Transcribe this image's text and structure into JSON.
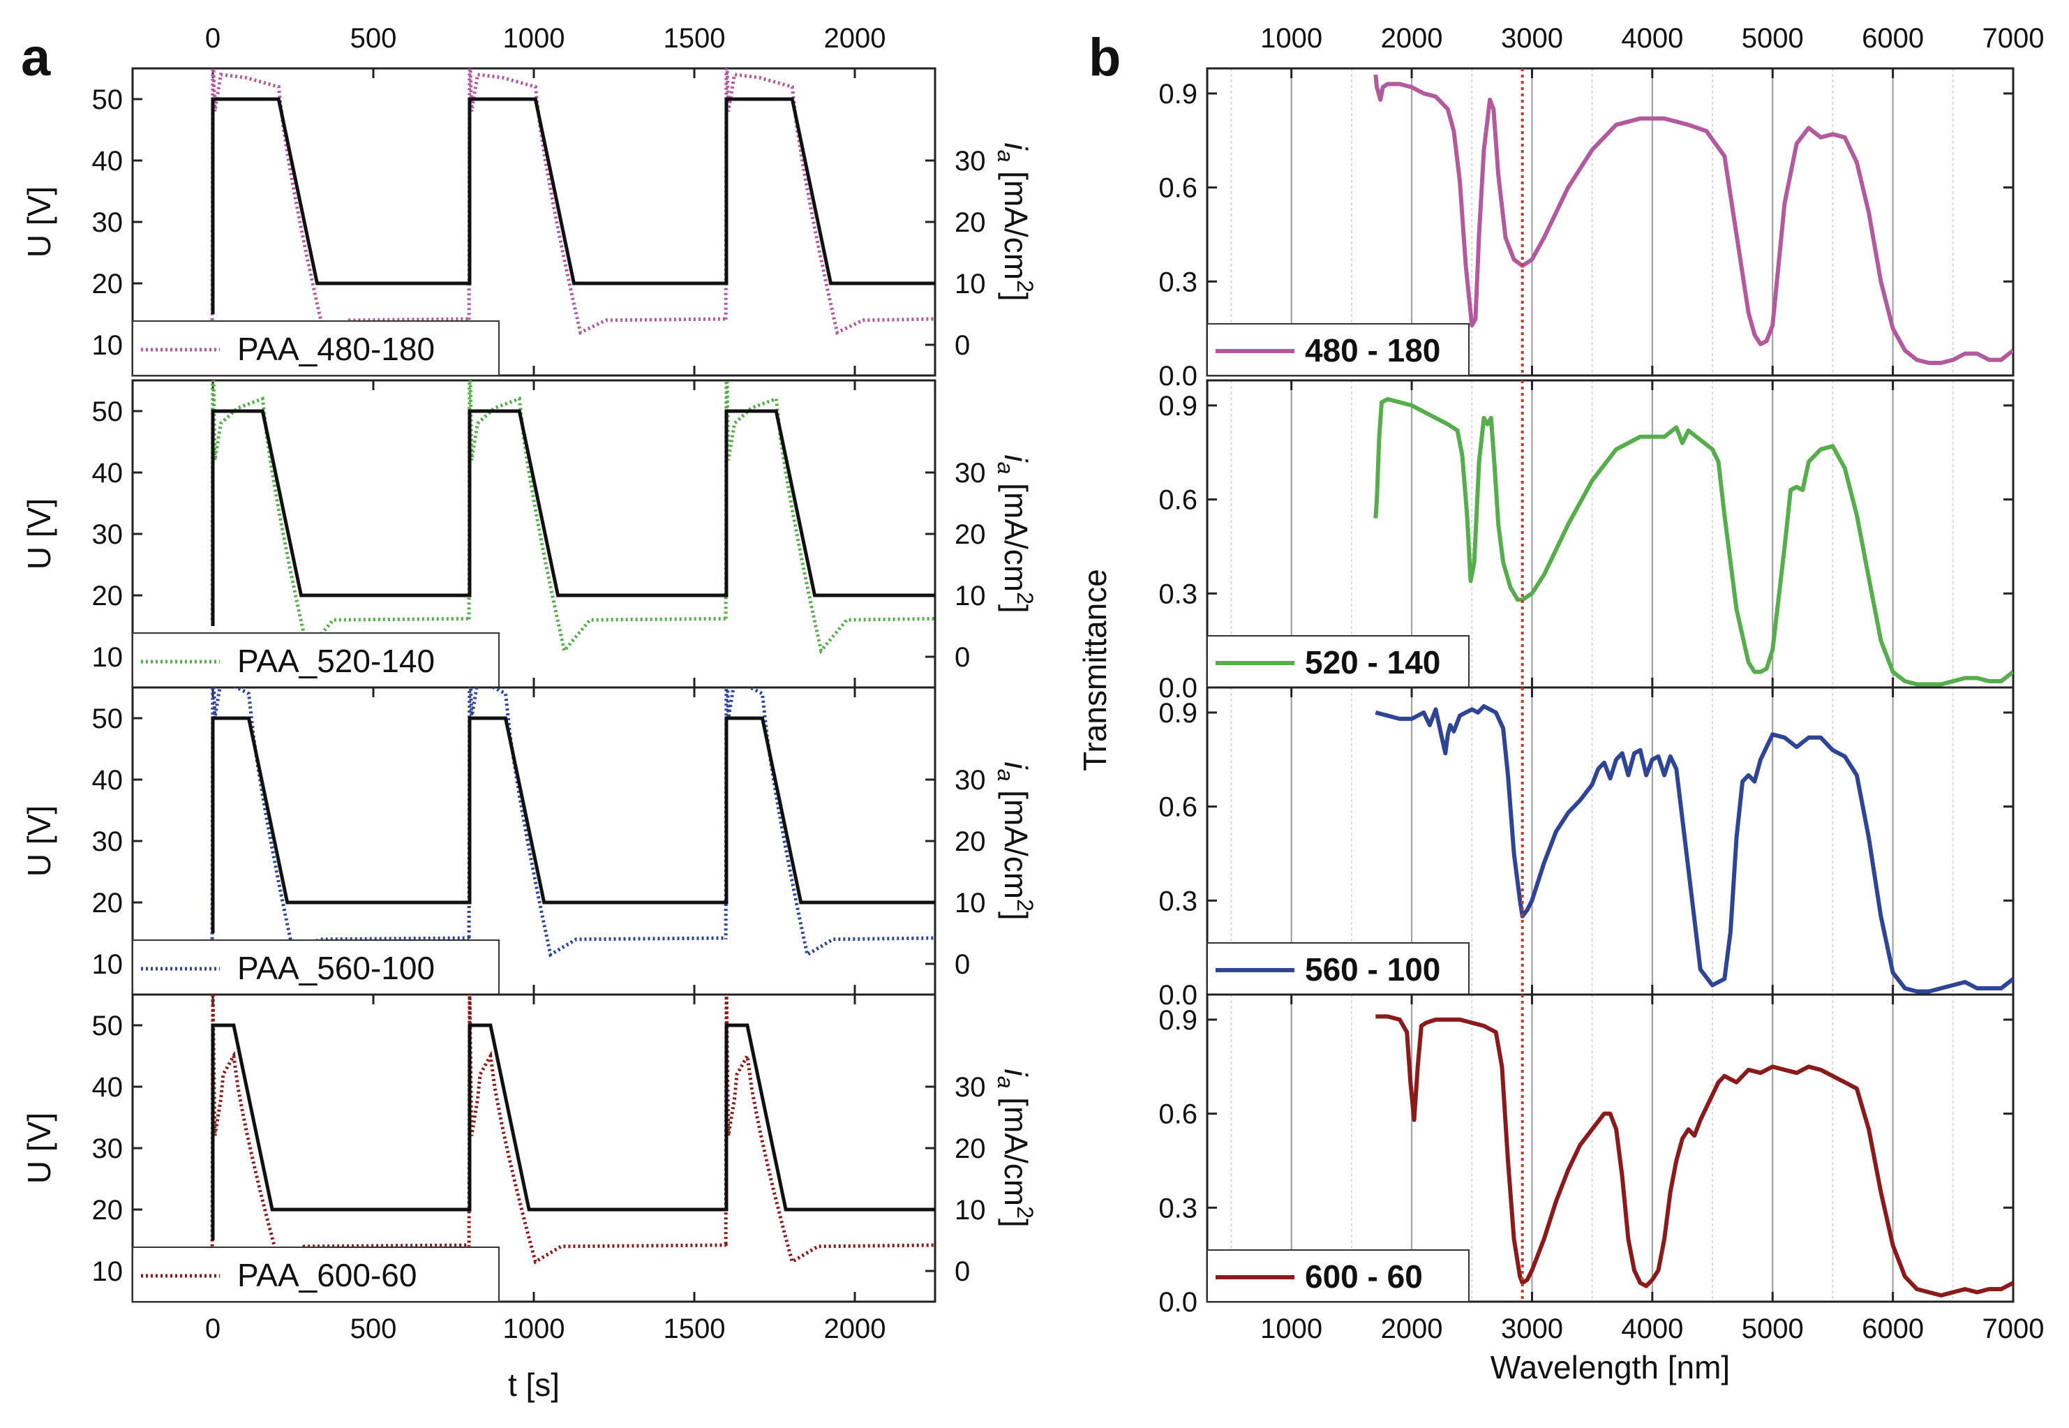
{
  "figure": {
    "panel_labels": {
      "a": "a",
      "b": "b"
    }
  },
  "chart_data": [
    {
      "panel": "a",
      "type": "line",
      "xlabel": "t [s]",
      "xlim": [
        -250,
        2250
      ],
      "xticks": [
        0,
        500,
        1000,
        1500,
        2000
      ],
      "top_xticks": [
        0,
        500,
        1000,
        1500,
        2000
      ],
      "left_ylabel": "U [V]",
      "left_ylim": [
        5,
        55
      ],
      "left_yticks": [
        10,
        20,
        30,
        40,
        50
      ],
      "right_ylabel": "i_a [mA/cm²]",
      "right_ylabel_parts": {
        "symbol": "i",
        "subscript": "a",
        "unit": " [mA/cm",
        "sup": "2",
        "close": "]"
      },
      "right_ylim": [
        -5,
        45
      ],
      "right_yticks": [
        0,
        10,
        20,
        30
      ],
      "voltage_series_name": "U",
      "current_series_name": "i_a",
      "subplots": [
        {
          "legend": "PAA_480-180",
          "color": "#B35A9E",
          "upper_voltage": 50,
          "lower_voltage": 20,
          "hold_time": 205,
          "ramp_time": 120,
          "period": 800,
          "start_time": 0,
          "current": {
            "peak": 45,
            "hold_start": 44,
            "hold_end": 42,
            "overshoot": 49,
            "min": 2,
            "steady": 4,
            "decay": 70,
            "tail": 100
          }
        },
        {
          "legend": "PAA_520-140",
          "color": "#55AE4B",
          "upper_voltage": 50,
          "lower_voltage": 20,
          "hold_time": 155,
          "ramp_time": 120,
          "period": 800,
          "start_time": 0,
          "current": {
            "peak": 49,
            "hold_start": 38,
            "hold_end": 42,
            "overshoot": 53,
            "min": 1,
            "steady": 6,
            "decay": 70,
            "tail": 100
          }
        },
        {
          "legend": "PAA_560-100",
          "color": "#2E4596",
          "upper_voltage": 50,
          "lower_voltage": 20,
          "hold_time": 112,
          "ramp_time": 120,
          "period": 800,
          "start_time": 0,
          "current": {
            "peak": 47,
            "hold_start": 46,
            "hold_end": 44,
            "overshoot": 52,
            "min": 1.5,
            "steady": 4,
            "decay": 70,
            "tail": 100
          }
        },
        {
          "legend": "PAA_600-60",
          "color": "#8B1A1A",
          "upper_voltage": 50,
          "lower_voltage": 20,
          "hold_time": 65,
          "ramp_time": 120,
          "period": 800,
          "start_time": 0,
          "current": {
            "peak": 35,
            "hold_start": 28,
            "hold_end": 35,
            "overshoot": 46,
            "min": 1.5,
            "steady": 4,
            "decay": 70,
            "tail": 100
          }
        }
      ]
    },
    {
      "panel": "b",
      "type": "line",
      "xlabel": "Wavelength [nm]",
      "ylabel": "Transmittance",
      "xlim": [
        300,
        7000
      ],
      "xticks": [
        1000,
        2000,
        3000,
        4000,
        5000,
        6000,
        7000
      ],
      "top_xticks": [
        1000,
        2000,
        3000,
        4000,
        5000,
        6000,
        7000
      ],
      "ylim": [
        0,
        0.98
      ],
      "yticks": [
        "0.0",
        "0.3",
        "0.6",
        "0.9"
      ],
      "reference_line_x": 2920,
      "reference_line_color": "#C0392B",
      "series": [
        {
          "name": "480 - 180",
          "color": "#B35A9E",
          "x": [
            1700,
            1710,
            1740,
            1760,
            1800,
            1900,
            2000,
            2100,
            2200,
            2300,
            2350,
            2400,
            2450,
            2500,
            2530,
            2560,
            2600,
            2650,
            2680,
            2720,
            2780,
            2850,
            2920,
            3000,
            3100,
            3300,
            3500,
            3700,
            3900,
            4100,
            4300,
            4450,
            4600,
            4700,
            4800,
            4850,
            4900,
            4950,
            5000,
            5100,
            5200,
            5300,
            5400,
            5500,
            5600,
            5700,
            5800,
            5900,
            6000,
            6100,
            6200,
            6300,
            6400,
            6500,
            6600,
            6700,
            6800,
            6900,
            7000
          ],
          "y": [
            0.96,
            0.92,
            0.88,
            0.92,
            0.93,
            0.93,
            0.92,
            0.9,
            0.89,
            0.85,
            0.78,
            0.62,
            0.35,
            0.16,
            0.18,
            0.45,
            0.72,
            0.88,
            0.85,
            0.64,
            0.44,
            0.37,
            0.35,
            0.37,
            0.44,
            0.6,
            0.72,
            0.8,
            0.82,
            0.82,
            0.8,
            0.78,
            0.7,
            0.45,
            0.2,
            0.13,
            0.1,
            0.11,
            0.16,
            0.55,
            0.74,
            0.79,
            0.76,
            0.77,
            0.76,
            0.68,
            0.52,
            0.3,
            0.15,
            0.08,
            0.05,
            0.04,
            0.04,
            0.05,
            0.07,
            0.07,
            0.05,
            0.05,
            0.08
          ]
        },
        {
          "name": "520 - 140",
          "color": "#55AE4B",
          "x": [
            1700,
            1710,
            1730,
            1750,
            1800,
            1900,
            2000,
            2100,
            2200,
            2300,
            2380,
            2420,
            2460,
            2490,
            2520,
            2560,
            2600,
            2630,
            2660,
            2690,
            2720,
            2760,
            2820,
            2880,
            2920,
            3000,
            3100,
            3300,
            3500,
            3700,
            3900,
            4100,
            4200,
            4250,
            4300,
            4400,
            4500,
            4550,
            4600,
            4700,
            4800,
            4850,
            4900,
            4950,
            5000,
            5100,
            5150,
            5200,
            5250,
            5300,
            5400,
            5500,
            5600,
            5700,
            5800,
            5900,
            6000,
            6100,
            6200,
            6300,
            6400,
            6500,
            6600,
            6700,
            6800,
            6900,
            7000
          ],
          "y": [
            0.54,
            0.6,
            0.8,
            0.91,
            0.92,
            0.91,
            0.9,
            0.88,
            0.86,
            0.84,
            0.82,
            0.74,
            0.55,
            0.34,
            0.4,
            0.72,
            0.86,
            0.84,
            0.86,
            0.7,
            0.52,
            0.4,
            0.32,
            0.28,
            0.28,
            0.3,
            0.36,
            0.52,
            0.66,
            0.76,
            0.8,
            0.8,
            0.83,
            0.78,
            0.82,
            0.79,
            0.76,
            0.72,
            0.55,
            0.25,
            0.08,
            0.05,
            0.05,
            0.06,
            0.12,
            0.45,
            0.63,
            0.64,
            0.63,
            0.72,
            0.76,
            0.77,
            0.7,
            0.55,
            0.35,
            0.15,
            0.05,
            0.02,
            0.01,
            0.01,
            0.01,
            0.02,
            0.03,
            0.03,
            0.02,
            0.02,
            0.05
          ]
        },
        {
          "name": "560 - 100",
          "color": "#2E4596",
          "x": [
            1700,
            1800,
            1900,
            2000,
            2100,
            2150,
            2200,
            2250,
            2280,
            2300,
            2320,
            2350,
            2400,
            2450,
            2500,
            2550,
            2600,
            2650,
            2700,
            2760,
            2800,
            2850,
            2900,
            2920,
            2960,
            3000,
            3100,
            3200,
            3300,
            3400,
            3500,
            3550,
            3600,
            3650,
            3700,
            3750,
            3800,
            3850,
            3900,
            3950,
            4000,
            4050,
            4100,
            4150,
            4200,
            4300,
            4400,
            4500,
            4600,
            4650,
            4700,
            4750,
            4800,
            4850,
            4900,
            5000,
            5100,
            5200,
            5300,
            5400,
            5500,
            5600,
            5700,
            5800,
            5900,
            6000,
            6100,
            6200,
            6300,
            6400,
            6500,
            6600,
            6700,
            6800,
            6900,
            7000
          ],
          "y": [
            0.9,
            0.89,
            0.88,
            0.88,
            0.9,
            0.86,
            0.91,
            0.82,
            0.77,
            0.83,
            0.86,
            0.84,
            0.89,
            0.9,
            0.91,
            0.9,
            0.92,
            0.91,
            0.9,
            0.85,
            0.7,
            0.45,
            0.3,
            0.25,
            0.27,
            0.3,
            0.42,
            0.52,
            0.58,
            0.62,
            0.67,
            0.72,
            0.74,
            0.69,
            0.75,
            0.77,
            0.7,
            0.77,
            0.78,
            0.7,
            0.75,
            0.76,
            0.7,
            0.76,
            0.72,
            0.4,
            0.08,
            0.03,
            0.05,
            0.2,
            0.5,
            0.68,
            0.7,
            0.68,
            0.75,
            0.83,
            0.82,
            0.79,
            0.82,
            0.82,
            0.78,
            0.76,
            0.7,
            0.5,
            0.25,
            0.07,
            0.02,
            0.01,
            0.01,
            0.02,
            0.03,
            0.04,
            0.02,
            0.02,
            0.02,
            0.05
          ]
        },
        {
          "name": "600 - 60",
          "color": "#8B1A1A",
          "x": [
            1700,
            1800,
            1900,
            1960,
            1990,
            2020,
            2050,
            2080,
            2120,
            2200,
            2300,
            2400,
            2500,
            2600,
            2700,
            2750,
            2800,
            2850,
            2900,
            2920,
            2960,
            3000,
            3100,
            3200,
            3300,
            3400,
            3500,
            3600,
            3650,
            3700,
            3750,
            3800,
            3850,
            3900,
            3950,
            4000,
            4050,
            4100,
            4150,
            4200,
            4250,
            4300,
            4350,
            4400,
            4450,
            4500,
            4550,
            4600,
            4700,
            4800,
            4900,
            5000,
            5100,
            5200,
            5300,
            5400,
            5500,
            5600,
            5700,
            5800,
            5900,
            6000,
            6100,
            6200,
            6300,
            6400,
            6500,
            6600,
            6700,
            6800,
            6900,
            7000
          ],
          "y": [
            0.91,
            0.91,
            0.9,
            0.86,
            0.7,
            0.58,
            0.75,
            0.88,
            0.89,
            0.9,
            0.9,
            0.9,
            0.89,
            0.88,
            0.86,
            0.75,
            0.45,
            0.2,
            0.08,
            0.06,
            0.07,
            0.1,
            0.2,
            0.32,
            0.42,
            0.5,
            0.55,
            0.6,
            0.6,
            0.55,
            0.4,
            0.2,
            0.1,
            0.06,
            0.05,
            0.07,
            0.1,
            0.2,
            0.35,
            0.45,
            0.52,
            0.55,
            0.53,
            0.58,
            0.62,
            0.66,
            0.7,
            0.72,
            0.7,
            0.74,
            0.73,
            0.75,
            0.74,
            0.73,
            0.75,
            0.74,
            0.72,
            0.7,
            0.68,
            0.55,
            0.35,
            0.18,
            0.08,
            0.04,
            0.03,
            0.02,
            0.03,
            0.04,
            0.03,
            0.04,
            0.04,
            0.06
          ]
        }
      ]
    }
  ]
}
